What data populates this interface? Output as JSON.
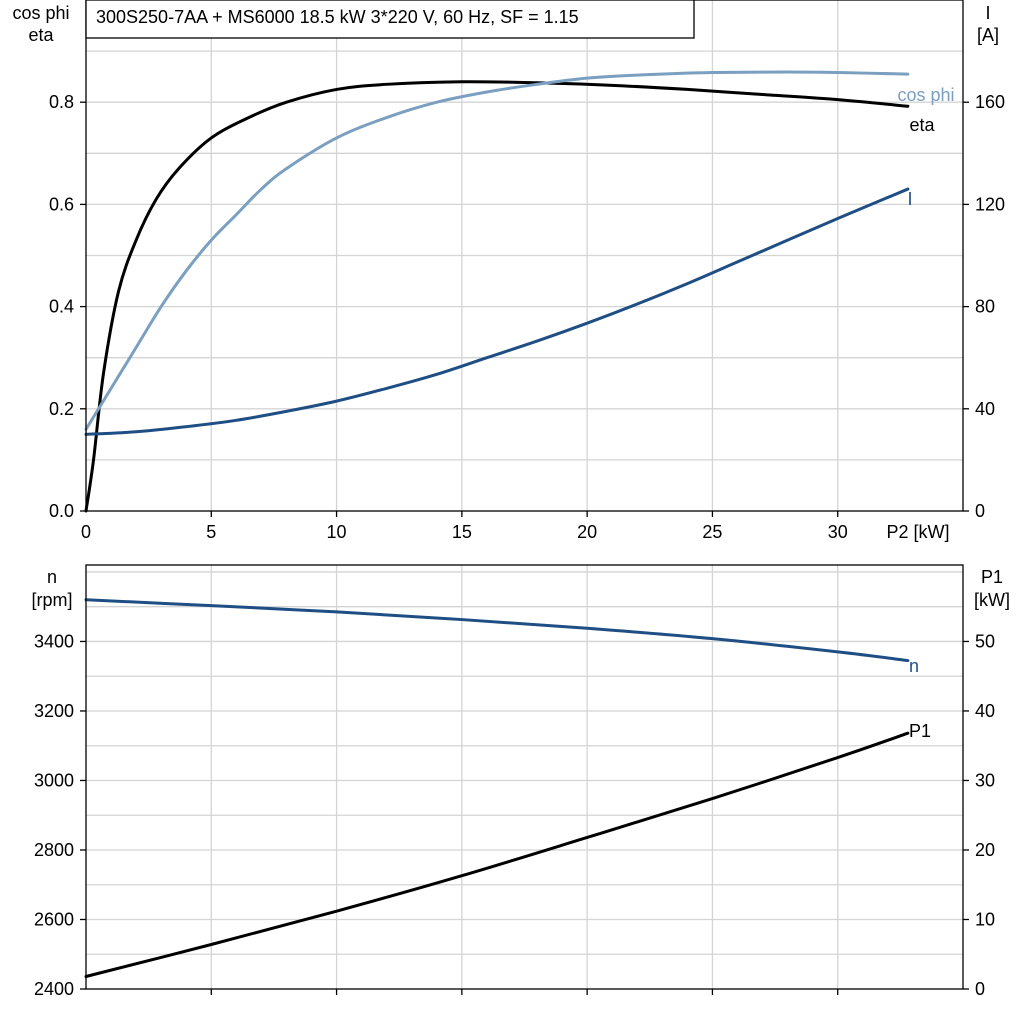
{
  "colors": {
    "eta": "#000000",
    "cos_phi": "#7a9fc0",
    "current": "#1f4e85",
    "speed": "#1f4e85",
    "p1": "#000000",
    "grid": "#d4d4d4"
  },
  "chart_data": [
    {
      "type": "line",
      "title": "300S250-7AA + MS6000   18.5 kW   3*220 V, 60 Hz, SF = 1.15",
      "xlabel": "P2 [kW]",
      "xlim": [
        0,
        35
      ],
      "x_ticks": [
        "0",
        "5",
        "10",
        "15",
        "20",
        "25",
        "30"
      ],
      "x_tick_values": [
        0,
        5,
        10,
        15,
        20,
        25,
        30
      ],
      "left_axis": {
        "label_line1": "cos phi",
        "label_line2": "eta",
        "ylim": [
          0,
          1.0
        ],
        "ticks": [
          "0.0",
          "0.2",
          "0.4",
          "0.6",
          "0.8"
        ],
        "tick_values": [
          0,
          0.2,
          0.4,
          0.6,
          0.8
        ]
      },
      "right_axis": {
        "label_line1": "I",
        "label_line2": "[A]",
        "ylim": [
          0,
          200
        ],
        "ticks": [
          "0",
          "40",
          "80",
          "120",
          "160"
        ],
        "tick_values": [
          0,
          40,
          80,
          120,
          160
        ]
      },
      "grid": true,
      "series": [
        {
          "name": "eta",
          "axis": "left",
          "color_key": "eta",
          "x": [
            0,
            0.3,
            0.7,
            1.3,
            2,
            2.8,
            3.7,
            5,
            6.5,
            8,
            10,
            12,
            15,
            18,
            21,
            24,
            27,
            30,
            32.8
          ],
          "y": [
            0,
            0.1,
            0.27,
            0.43,
            0.53,
            0.61,
            0.67,
            0.73,
            0.77,
            0.8,
            0.825,
            0.835,
            0.84,
            0.838,
            0.833,
            0.825,
            0.815,
            0.805,
            0.792
          ]
        },
        {
          "name": "cos phi",
          "axis": "left",
          "color_key": "cos_phi",
          "x": [
            0,
            1,
            2,
            3,
            4,
            5,
            6,
            7,
            8,
            10,
            12,
            14,
            16,
            18,
            20,
            22,
            25,
            28,
            30,
            32.8
          ],
          "y": [
            0.16,
            0.24,
            0.32,
            0.4,
            0.47,
            0.53,
            0.58,
            0.63,
            0.67,
            0.73,
            0.77,
            0.8,
            0.82,
            0.835,
            0.847,
            0.853,
            0.858,
            0.859,
            0.858,
            0.855
          ]
        },
        {
          "name": "I",
          "axis": "right",
          "color_key": "current",
          "x": [
            0,
            2,
            4,
            6,
            8,
            10,
            12,
            14,
            16,
            18,
            20,
            22,
            24,
            26,
            28,
            30,
            32.8
          ],
          "y": [
            30,
            31,
            33,
            35.5,
            39,
            43,
            48,
            53.5,
            60,
            66.5,
            73.5,
            81,
            89,
            97.5,
            106,
            114.5,
            126
          ]
        }
      ]
    },
    {
      "type": "line",
      "xlim": [
        0,
        35
      ],
      "left_axis": {
        "label_line1": "n",
        "label_line2": "[rpm]",
        "ylim": [
          2400,
          3620
        ],
        "ticks": [
          "2400",
          "2600",
          "2800",
          "3000",
          "3200",
          "3400"
        ],
        "tick_values": [
          2400,
          2600,
          2800,
          3000,
          3200,
          3400
        ]
      },
      "right_axis": {
        "label_line1": "P1",
        "label_line2": "[kW]",
        "ylim": [
          0,
          61
        ],
        "ticks": [
          "0",
          "10",
          "20",
          "30",
          "40",
          "50"
        ],
        "tick_values": [
          0,
          10,
          20,
          30,
          40,
          50
        ]
      },
      "grid": true,
      "series": [
        {
          "name": "n",
          "axis": "left",
          "color_key": "speed",
          "x": [
            0,
            5,
            10,
            15,
            20,
            25,
            30,
            32.8
          ],
          "y": [
            3520,
            3503,
            3485,
            3463,
            3438,
            3408,
            3370,
            3345
          ]
        },
        {
          "name": "P1",
          "axis": "right",
          "color_key": "p1",
          "x": [
            0,
            5,
            10,
            15,
            20,
            25,
            30,
            32.8
          ],
          "y": [
            1.8,
            6.4,
            11.2,
            16.3,
            21.8,
            27.4,
            33.3,
            36.8
          ]
        }
      ]
    }
  ]
}
